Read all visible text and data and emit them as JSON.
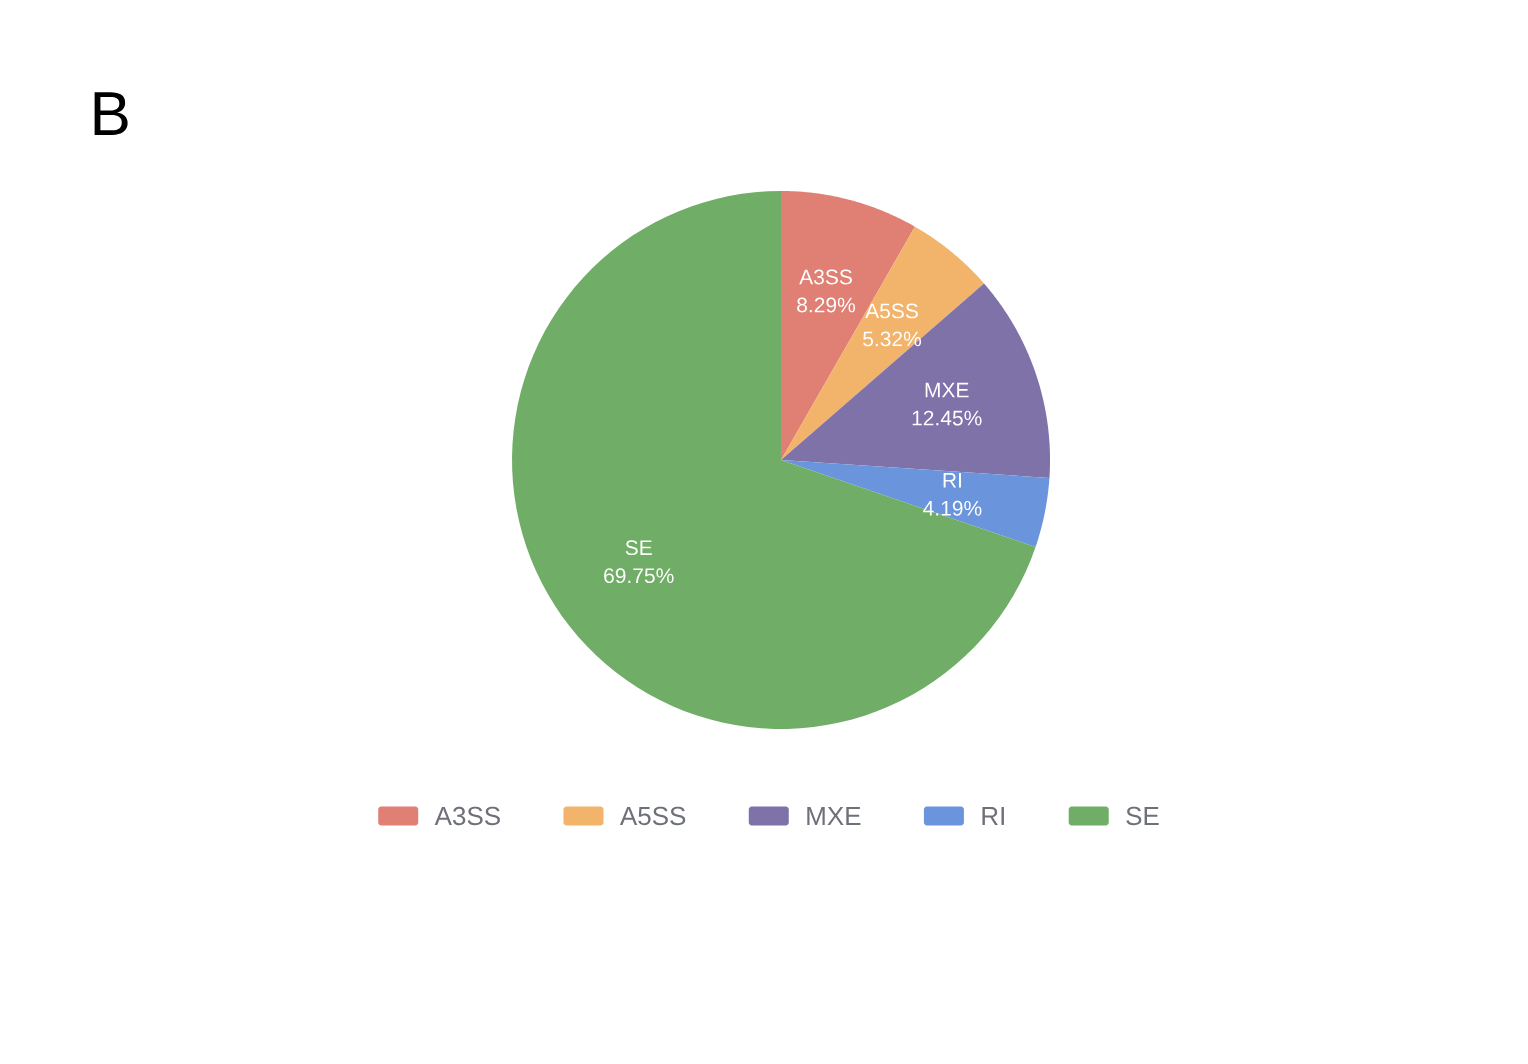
{
  "chart_data": {
    "type": "pie",
    "title": "B",
    "categories": [
      "A3SS",
      "A5SS",
      "MXE",
      "RI",
      "SE"
    ],
    "values": [
      8.29,
      5.32,
      12.45,
      4.19,
      69.75
    ],
    "value_labels": [
      "8.29%",
      "5.32%",
      "12.45%",
      "4.19%",
      "69.75%"
    ],
    "colors": [
      "#e07f73",
      "#f2b36b",
      "#7e72a9",
      "#6a95dd",
      "#70ad66"
    ],
    "legend": "bottom"
  }
}
